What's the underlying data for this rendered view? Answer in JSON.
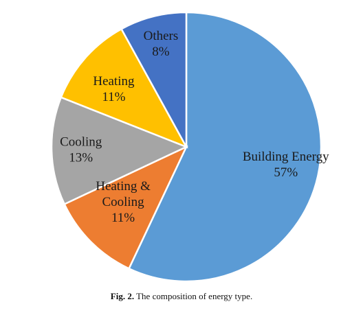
{
  "chart_data": {
    "type": "pie",
    "slices": [
      {
        "label": "Building Energy",
        "value": 57,
        "display": "57%",
        "color": "#5B9BD5"
      },
      {
        "label": "Heating & Cooling",
        "value": 11,
        "display": "11%",
        "color": "#ED7D31"
      },
      {
        "label": "Cooling",
        "value": 13,
        "display": "13%",
        "color": "#A5A5A5"
      },
      {
        "label": "Heating",
        "value": 11,
        "display": "11%",
        "color": "#FFC000"
      },
      {
        "label": "Others",
        "value": 8,
        "display": "8%",
        "color": "#4472C4"
      }
    ],
    "start": "12 o'clock",
    "direction": "clockwise",
    "legend": "none"
  },
  "caption": {
    "fig_label": "Fig. 2.",
    "text": "The composition of energy type."
  }
}
